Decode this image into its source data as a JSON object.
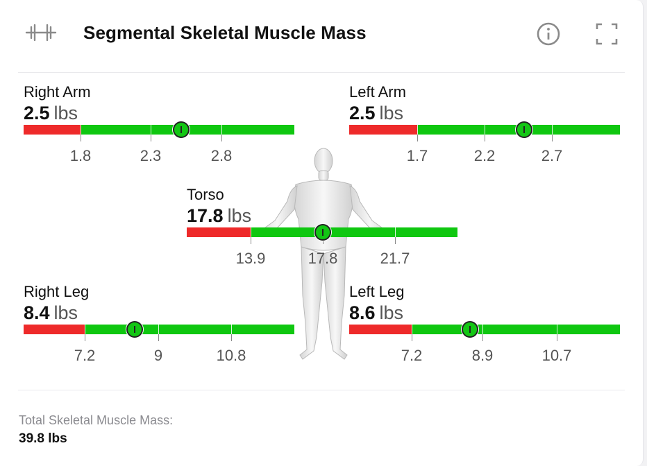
{
  "header": {
    "title": "Segmental Skeletal Muscle Mass",
    "icons": [
      "dumbbell-icon",
      "info-icon",
      "expand-icon"
    ]
  },
  "colors": {
    "low": "#ee2a2a",
    "normal": "#0fc710",
    "marker": "#13c614"
  },
  "segments": [
    {
      "name": "right-arm",
      "label": "Right Arm",
      "value": "2.5",
      "unit": "lbs",
      "value_num": 2.5,
      "ticks": [
        "1.8",
        "2.3",
        "2.8"
      ]
    },
    {
      "name": "left-arm",
      "label": "Left Arm",
      "value": "2.5",
      "unit": "lbs",
      "value_num": 2.5,
      "ticks": [
        "1.7",
        "2.2",
        "2.7"
      ]
    },
    {
      "name": "torso",
      "label": "Torso",
      "value": "17.8",
      "unit": "lbs",
      "value_num": 17.8,
      "ticks": [
        "13.9",
        "17.8",
        "21.7"
      ]
    },
    {
      "name": "right-leg",
      "label": "Right Leg",
      "value": "8.4",
      "unit": "lbs",
      "value_num": 8.4,
      "ticks": [
        "7.2",
        "9",
        "10.8"
      ]
    },
    {
      "name": "left-leg",
      "label": "Left Leg",
      "value": "8.6",
      "unit": "lbs",
      "value_num": 8.6,
      "ticks": [
        "7.2",
        "8.9",
        "10.7"
      ]
    }
  ],
  "total": {
    "label": "Total Skeletal Muscle Mass:",
    "value": "39.8 lbs"
  }
}
